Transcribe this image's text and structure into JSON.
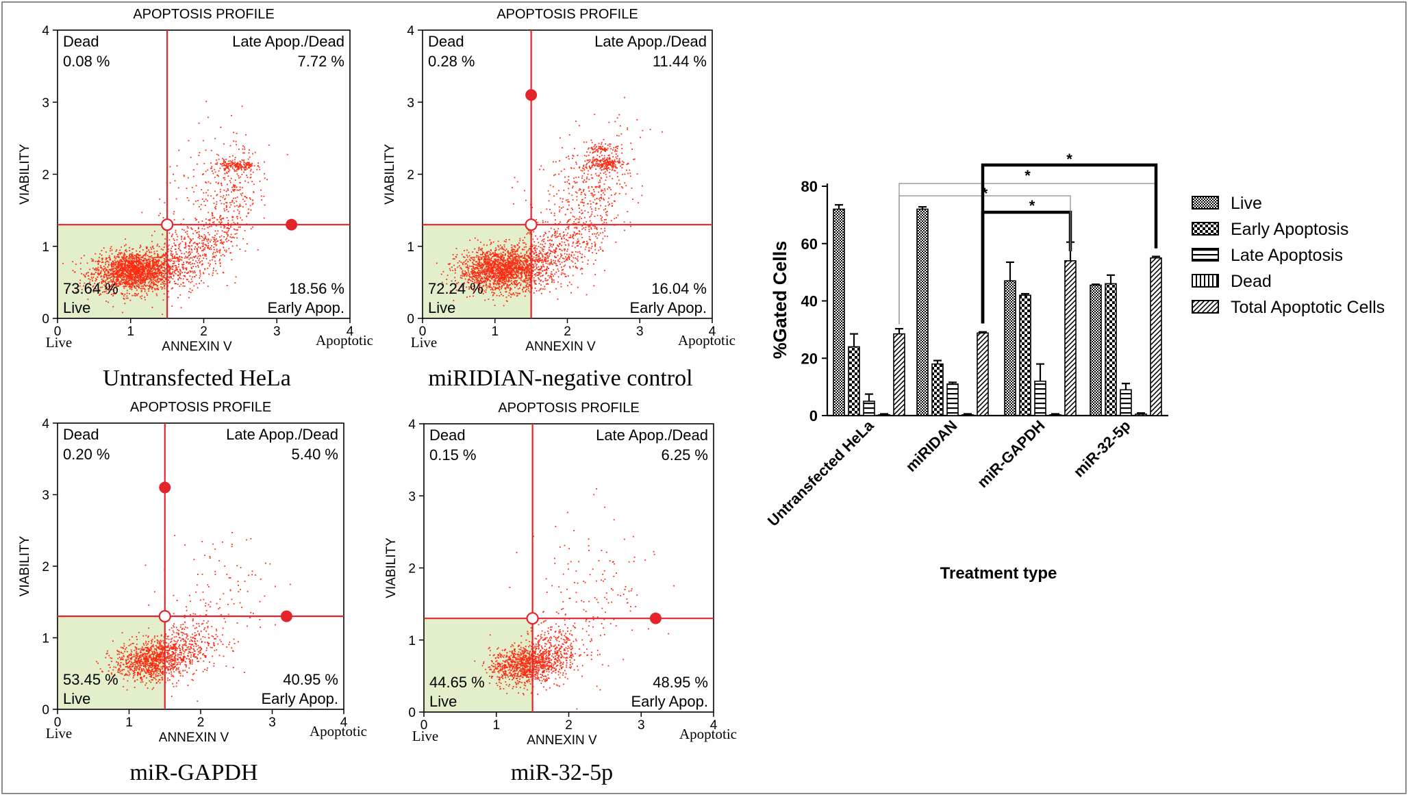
{
  "chart_data": [
    {
      "type": "scatter",
      "title": "APOPTOSIS PROFILE",
      "caption": "Untransfected HeLa",
      "xlabel": "ANNEXIN V",
      "ylabel": "VIABILITY",
      "x_left_label": "Live",
      "x_right_label": "Apoptotic",
      "xlim": [
        0,
        4
      ],
      "ylim": [
        0,
        4
      ],
      "xticks": [
        "0",
        "1",
        "2",
        "3",
        "4"
      ],
      "yticks": [
        "0",
        "1",
        "2",
        "3",
        "4"
      ],
      "gate_x": 1.5,
      "gate_y": 1.3,
      "handles": [
        [
          3.2,
          1.3
        ]
      ],
      "quadrants": {
        "dead": {
          "label": "Dead",
          "value": "0.08 %"
        },
        "late": {
          "label": "Late Apop./Dead",
          "value": "7.72 %"
        },
        "live": {
          "label": "Live",
          "value": "73.64 %"
        },
        "early": {
          "label": "Early Apop.",
          "value": "18.56 %"
        }
      },
      "clusters": [
        {
          "cx": 1.05,
          "cy": 0.65,
          "sx": 0.28,
          "sy": 0.14,
          "n": 1800,
          "r": 0.1
        },
        {
          "cx": 1.75,
          "cy": 0.85,
          "sx": 0.3,
          "sy": 0.25,
          "n": 450,
          "r": 0.4
        },
        {
          "cx": 2.3,
          "cy": 1.5,
          "sx": 0.22,
          "sy": 0.4,
          "n": 320,
          "r": 0.5
        },
        {
          "cx": 2.45,
          "cy": 2.12,
          "sx": 0.12,
          "sy": 0.04,
          "n": 170,
          "r": 0
        },
        {
          "cx": 2.2,
          "cy": 1.95,
          "sx": 0.4,
          "sy": 0.35,
          "n": 130,
          "r": 0.3
        }
      ]
    },
    {
      "type": "scatter",
      "title": "APOPTOSIS PROFILE",
      "caption": "miRIDIAN-negative control",
      "xlabel": "ANNEXIN V",
      "ylabel": "VIABILITY",
      "x_left_label": "Live",
      "x_right_label": "Apoptotic",
      "xlim": [
        0,
        4
      ],
      "ylim": [
        0,
        4
      ],
      "xticks": [
        "0",
        "1",
        "2",
        "3",
        "4"
      ],
      "yticks": [
        "0",
        "1",
        "2",
        "3",
        "4"
      ],
      "gate_x": 1.5,
      "gate_y": 1.3,
      "handles": [
        [
          1.5,
          3.1
        ]
      ],
      "quadrants": {
        "dead": {
          "label": "Dead",
          "value": "0.28 %"
        },
        "late": {
          "label": "Late Apop./Dead",
          "value": "11.44 %"
        },
        "live": {
          "label": "Live",
          "value": "72.24 %"
        },
        "early": {
          "label": "Early Apop.",
          "value": "16.04 %"
        }
      },
      "clusters": [
        {
          "cx": 1.1,
          "cy": 0.68,
          "sx": 0.3,
          "sy": 0.15,
          "n": 1800,
          "r": 0.1
        },
        {
          "cx": 1.8,
          "cy": 0.9,
          "sx": 0.3,
          "sy": 0.25,
          "n": 420,
          "r": 0.4
        },
        {
          "cx": 2.35,
          "cy": 1.55,
          "sx": 0.25,
          "sy": 0.45,
          "n": 330,
          "r": 0.5
        },
        {
          "cx": 2.5,
          "cy": 2.15,
          "sx": 0.13,
          "sy": 0.05,
          "n": 190,
          "r": 0
        },
        {
          "cx": 2.5,
          "cy": 2.35,
          "sx": 0.1,
          "sy": 0.03,
          "n": 70,
          "r": 0
        },
        {
          "cx": 2.2,
          "cy": 2.0,
          "sx": 0.4,
          "sy": 0.35,
          "n": 150,
          "r": 0.3
        }
      ]
    },
    {
      "type": "scatter",
      "title": "APOPTOSIS PROFILE",
      "caption": "miR-GAPDH",
      "xlabel": "ANNEXIN V",
      "ylabel": "VIABILITY",
      "x_left_label": "Live",
      "x_right_label": "Apoptotic",
      "xlim": [
        0,
        4
      ],
      "ylim": [
        0,
        4
      ],
      "xticks": [
        "0",
        "1",
        "2",
        "3",
        "4"
      ],
      "yticks": [
        "0",
        "1",
        "2",
        "3",
        "4"
      ],
      "gate_x": 1.5,
      "gate_y": 1.3,
      "handles": [
        [
          1.5,
          3.1
        ],
        [
          3.2,
          1.3
        ]
      ],
      "quadrants": {
        "dead": {
          "label": "Dead",
          "value": "0.20 %"
        },
        "late": {
          "label": "Late Apop./Dead",
          "value": "5.40 %"
        },
        "live": {
          "label": "Live",
          "value": "53.45 %"
        },
        "early": {
          "label": "Early Apop.",
          "value": "40.95 %"
        }
      },
      "clusters": [
        {
          "cx": 1.3,
          "cy": 0.68,
          "sx": 0.25,
          "sy": 0.14,
          "n": 900,
          "r": 0.15
        },
        {
          "cx": 1.75,
          "cy": 0.85,
          "sx": 0.25,
          "sy": 0.22,
          "n": 380,
          "r": 0.3
        },
        {
          "cx": 2.2,
          "cy": 1.5,
          "sx": 0.4,
          "sy": 0.5,
          "n": 130,
          "r": 0.2
        }
      ]
    },
    {
      "type": "scatter",
      "title": "APOPTOSIS PROFILE",
      "caption": "miR-32-5p",
      "xlabel": "ANNEXIN V",
      "ylabel": "VIABILITY",
      "x_left_label": "Live",
      "x_right_label": "Apoptotic",
      "xlim": [
        0,
        4
      ],
      "ylim": [
        0,
        4
      ],
      "xticks": [
        "0",
        "1",
        "2",
        "3",
        "4"
      ],
      "yticks": [
        "0",
        "1",
        "2",
        "3",
        "4"
      ],
      "gate_x": 1.5,
      "gate_y": 1.3,
      "handles": [
        [
          3.2,
          1.3
        ]
      ],
      "quadrants": {
        "dead": {
          "label": "Dead",
          "value": "0.15 %"
        },
        "late": {
          "label": "Late Apop./Dead",
          "value": "6.25 %"
        },
        "live": {
          "label": "Live",
          "value": "44.65 %"
        },
        "early": {
          "label": "Early Apop.",
          "value": "48.95 %"
        }
      },
      "clusters": [
        {
          "cx": 1.35,
          "cy": 0.65,
          "sx": 0.22,
          "sy": 0.13,
          "n": 780,
          "r": 0.15
        },
        {
          "cx": 1.75,
          "cy": 0.78,
          "sx": 0.25,
          "sy": 0.2,
          "n": 480,
          "r": 0.3
        },
        {
          "cx": 2.3,
          "cy": 1.6,
          "sx": 0.45,
          "sy": 0.55,
          "n": 150,
          "r": 0.2
        }
      ]
    },
    {
      "type": "bar",
      "ylabel": "%Gated Cells",
      "xlabel": "Treatment type",
      "ylim": [
        0,
        80
      ],
      "yticks": [
        "0",
        "20",
        "40",
        "60",
        "80"
      ],
      "categories": [
        "Untransfected HeLa",
        "miRIDAN",
        "miR-GAPDH",
        "miR-32-5p"
      ],
      "series": [
        {
          "name": "Live",
          "pattern": "checker",
          "values": [
            72,
            72,
            47,
            45.5
          ],
          "errors": [
            1.5,
            0.8,
            6.5,
            0.3
          ]
        },
        {
          "name": "Early Apoptosis",
          "pattern": "bigcheck",
          "values": [
            24,
            18,
            42,
            46
          ],
          "errors": [
            4.5,
            1.2,
            0.5,
            3
          ]
        },
        {
          "name": "Late Apoptosis",
          "pattern": "hlines",
          "values": [
            5,
            11,
            12,
            9
          ],
          "errors": [
            2.5,
            0.6,
            6,
            2.2
          ]
        },
        {
          "name": "Dead",
          "pattern": "vlines",
          "values": [
            0.3,
            0.3,
            0.3,
            0.5
          ],
          "errors": [
            0.3,
            0.3,
            0.3,
            0.4
          ]
        },
        {
          "name": "Total Apoptotic Cells",
          "pattern": "diag",
          "values": [
            28.5,
            28.8,
            54,
            55
          ],
          "errors": [
            1.8,
            0.4,
            6.5,
            0.5
          ]
        }
      ],
      "significance": [
        {
          "from": 1,
          "to": 2,
          "label": "*",
          "bold": true
        },
        {
          "from": 0,
          "to": 2,
          "label": "*",
          "bold": false
        },
        {
          "from": 0,
          "to": 3,
          "label": "*",
          "bold": false
        },
        {
          "from": 1,
          "to": 3,
          "label": "*",
          "bold": true
        }
      ]
    }
  ],
  "colors": {
    "dot": "#ff2a10",
    "gate": "#e3242b",
    "live_fill": "#e3eecb",
    "axis": "#000000",
    "frame": "#666666"
  }
}
